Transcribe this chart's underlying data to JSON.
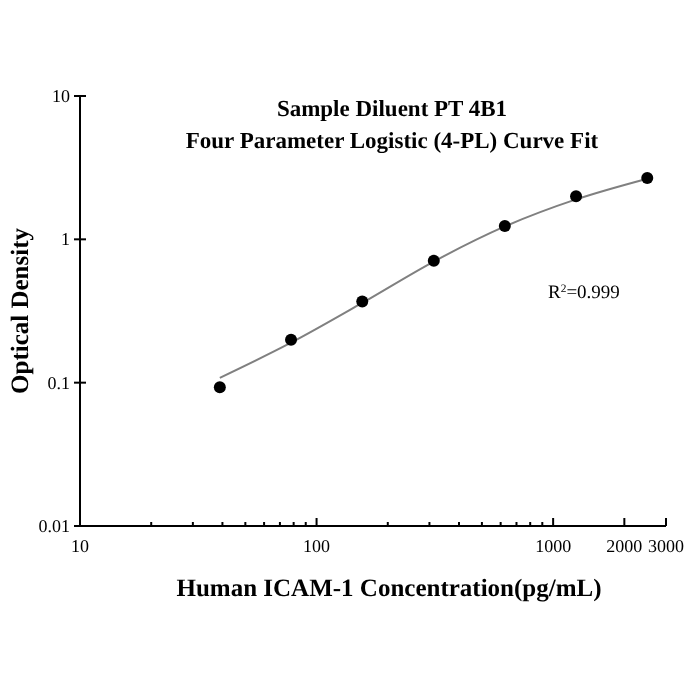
{
  "chart_data": {
    "type": "scatter",
    "title": "Sample Diluent PT 4B1\nFour Parameter Logistic (4-PL) Curve Fit",
    "xlabel": "Human ICAM-1 Concentration(pg/mL)",
    "ylabel": "Optical Density",
    "log": "xy",
    "xlim": [
      10,
      3000
    ],
    "ylim": [
      0.01,
      10
    ],
    "xticks": [
      10,
      {
        "value": 20,
        "label": null
      },
      {
        "value": 30,
        "label": null
      },
      {
        "value": 40,
        "label": null
      },
      {
        "value": 50,
        "label": null
      },
      {
        "value": 60,
        "label": null
      },
      {
        "value": 70,
        "label": null
      },
      {
        "value": 80,
        "label": null
      },
      {
        "value": 90,
        "label": null
      },
      100,
      {
        "value": 200,
        "label": null
      },
      {
        "value": 300,
        "label": null
      },
      {
        "value": 400,
        "label": null
      },
      {
        "value": 500,
        "label": null
      },
      {
        "value": 600,
        "label": null
      },
      {
        "value": 700,
        "label": null
      },
      {
        "value": 800,
        "label": null
      },
      {
        "value": 900,
        "label": null
      },
      1000,
      2000,
      3000
    ],
    "yticks": [
      0.01,
      0.1,
      1,
      10
    ],
    "grid": false,
    "marker": "circle",
    "annotations": [
      "R$^{2}$=0.999"
    ],
    "series": [
      {
        "type": "line",
        "color": "#808080",
        "x": [
          39,
          78,
          156,
          313,
          625,
          1250,
          2500
        ],
        "values": [
          0.108,
          0.19,
          0.36,
          0.7,
          1.23,
          1.9,
          2.65
        ],
        "marker": "none",
        "line_style": "solid"
      },
      {
        "color": "#000000",
        "x": [
          39,
          78,
          156,
          313,
          625,
          1250,
          2500
        ],
        "values": [
          0.093,
          0.199,
          0.369,
          0.71,
          1.24,
          2.0,
          2.68
        ]
      }
    ]
  }
}
